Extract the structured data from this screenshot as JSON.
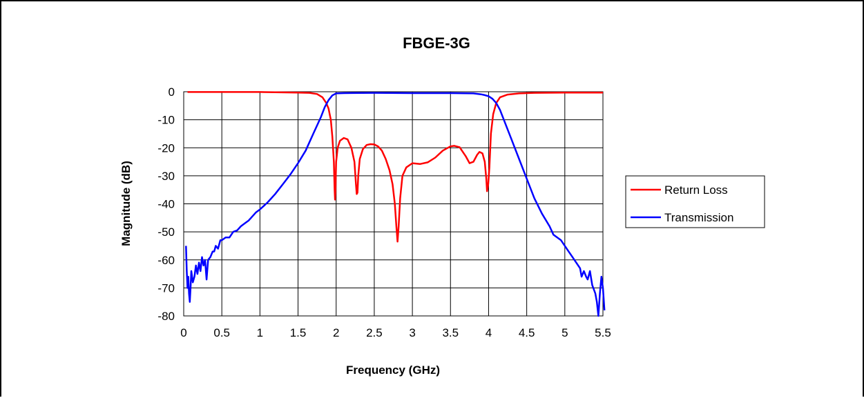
{
  "chart_data": {
    "type": "line",
    "title": "FBGE-3G",
    "xlabel": "Frequency (GHz)",
    "ylabel": "Magnitude (dB)",
    "xlim": [
      0,
      5.5
    ],
    "ylim": [
      -80,
      0
    ],
    "x_ticks": [
      "0",
      "0.5",
      "1",
      "1.5",
      "2",
      "2.5",
      "3",
      "3.5",
      "4",
      "4.5",
      "5",
      "5.5"
    ],
    "y_ticks": [
      "0",
      "-10",
      "-20",
      "-30",
      "-40",
      "-50",
      "-60",
      "-70",
      "-80"
    ],
    "grid": true,
    "legend_position": "right",
    "series": [
      {
        "name": "Return Loss",
        "color": "#ff0000",
        "points": [
          [
            0.05,
            -0.1
          ],
          [
            0.5,
            -0.1
          ],
          [
            1.0,
            -0.1
          ],
          [
            1.2,
            -0.2
          ],
          [
            1.5,
            -0.3
          ],
          [
            1.65,
            -0.4
          ],
          [
            1.75,
            -0.8
          ],
          [
            1.82,
            -2
          ],
          [
            1.87,
            -4
          ],
          [
            1.9,
            -6
          ],
          [
            1.93,
            -10
          ],
          [
            1.95,
            -16
          ],
          [
            1.97,
            -25
          ],
          [
            1.98,
            -35
          ],
          [
            1.985,
            -38.5
          ],
          [
            1.99,
            -36
          ],
          [
            2.0,
            -25
          ],
          [
            2.02,
            -20
          ],
          [
            2.05,
            -17.5
          ],
          [
            2.1,
            -16.5
          ],
          [
            2.15,
            -17
          ],
          [
            2.2,
            -20
          ],
          [
            2.24,
            -25
          ],
          [
            2.26,
            -33
          ],
          [
            2.27,
            -36.5
          ],
          [
            2.28,
            -36
          ],
          [
            2.29,
            -30
          ],
          [
            2.31,
            -24
          ],
          [
            2.35,
            -20.5
          ],
          [
            2.4,
            -19
          ],
          [
            2.45,
            -18.7
          ],
          [
            2.5,
            -18.8
          ],
          [
            2.55,
            -19.5
          ],
          [
            2.6,
            -21
          ],
          [
            2.65,
            -24
          ],
          [
            2.7,
            -28
          ],
          [
            2.74,
            -33
          ],
          [
            2.77,
            -40
          ],
          [
            2.79,
            -48
          ],
          [
            2.805,
            -53.5
          ],
          [
            2.82,
            -48
          ],
          [
            2.84,
            -38
          ],
          [
            2.87,
            -30
          ],
          [
            2.92,
            -27
          ],
          [
            3.0,
            -25.5
          ],
          [
            3.1,
            -25.8
          ],
          [
            3.2,
            -25.2
          ],
          [
            3.3,
            -23.5
          ],
          [
            3.4,
            -21
          ],
          [
            3.5,
            -19.5
          ],
          [
            3.55,
            -19.3
          ],
          [
            3.62,
            -19.8
          ],
          [
            3.7,
            -23
          ],
          [
            3.75,
            -25.5
          ],
          [
            3.8,
            -25
          ],
          [
            3.85,
            -22.5
          ],
          [
            3.88,
            -21.5
          ],
          [
            3.92,
            -22
          ],
          [
            3.95,
            -25
          ],
          [
            3.97,
            -31
          ],
          [
            3.98,
            -35.5
          ],
          [
            3.995,
            -33
          ],
          [
            4.01,
            -27
          ],
          [
            4.03,
            -15
          ],
          [
            4.06,
            -8
          ],
          [
            4.1,
            -4
          ],
          [
            4.15,
            -2
          ],
          [
            4.25,
            -1
          ],
          [
            4.4,
            -0.6
          ],
          [
            4.6,
            -0.4
          ],
          [
            5.0,
            -0.3
          ],
          [
            5.5,
            -0.3
          ]
        ]
      },
      {
        "name": "Transmission",
        "color": "#0000ff",
        "points": [
          [
            0.03,
            -55
          ],
          [
            0.04,
            -64
          ],
          [
            0.05,
            -70
          ],
          [
            0.06,
            -66
          ],
          [
            0.07,
            -72
          ],
          [
            0.08,
            -75
          ],
          [
            0.09,
            -70
          ],
          [
            0.1,
            -64
          ],
          [
            0.12,
            -68
          ],
          [
            0.14,
            -66
          ],
          [
            0.16,
            -62
          ],
          [
            0.18,
            -65
          ],
          [
            0.2,
            -61
          ],
          [
            0.22,
            -64
          ],
          [
            0.24,
            -59
          ],
          [
            0.26,
            -62
          ],
          [
            0.28,
            -60
          ],
          [
            0.3,
            -67
          ],
          [
            0.32,
            -60
          ],
          [
            0.35,
            -59
          ],
          [
            0.38,
            -57
          ],
          [
            0.4,
            -57
          ],
          [
            0.42,
            -55
          ],
          [
            0.45,
            -56
          ],
          [
            0.48,
            -53
          ],
          [
            0.5,
            -53
          ],
          [
            0.55,
            -52
          ],
          [
            0.6,
            -52
          ],
          [
            0.65,
            -50
          ],
          [
            0.7,
            -49.5
          ],
          [
            0.75,
            -48
          ],
          [
            0.8,
            -47
          ],
          [
            0.85,
            -46
          ],
          [
            0.9,
            -44.5
          ],
          [
            0.95,
            -43
          ],
          [
            1.0,
            -42
          ],
          [
            1.1,
            -39.5
          ],
          [
            1.2,
            -36.5
          ],
          [
            1.3,
            -33
          ],
          [
            1.4,
            -29.5
          ],
          [
            1.5,
            -25.5
          ],
          [
            1.6,
            -21
          ],
          [
            1.7,
            -15
          ],
          [
            1.8,
            -9
          ],
          [
            1.85,
            -5.5
          ],
          [
            1.9,
            -3
          ],
          [
            1.95,
            -1.3
          ],
          [
            2.0,
            -0.6
          ],
          [
            2.1,
            -0.5
          ],
          [
            2.5,
            -0.4
          ],
          [
            3.0,
            -0.5
          ],
          [
            3.5,
            -0.5
          ],
          [
            3.8,
            -0.6
          ],
          [
            3.9,
            -0.9
          ],
          [
            3.95,
            -1.2
          ],
          [
            4.0,
            -1.6
          ],
          [
            4.05,
            -2.5
          ],
          [
            4.1,
            -4
          ],
          [
            4.15,
            -6.5
          ],
          [
            4.2,
            -10
          ],
          [
            4.3,
            -17
          ],
          [
            4.4,
            -24
          ],
          [
            4.5,
            -31
          ],
          [
            4.6,
            -38
          ],
          [
            4.7,
            -43.5
          ],
          [
            4.8,
            -48
          ],
          [
            4.85,
            -51
          ],
          [
            4.9,
            -52
          ],
          [
            4.95,
            -53
          ],
          [
            5.0,
            -55
          ],
          [
            5.05,
            -57
          ],
          [
            5.1,
            -59
          ],
          [
            5.15,
            -61
          ],
          [
            5.2,
            -63
          ],
          [
            5.22,
            -66
          ],
          [
            5.25,
            -64
          ],
          [
            5.28,
            -66
          ],
          [
            5.3,
            -67
          ],
          [
            5.33,
            -64
          ],
          [
            5.36,
            -69
          ],
          [
            5.4,
            -72
          ],
          [
            5.42,
            -75
          ],
          [
            5.44,
            -80
          ],
          [
            5.46,
            -72
          ],
          [
            5.48,
            -66
          ],
          [
            5.5,
            -70
          ],
          [
            5.52,
            -78
          ]
        ]
      }
    ]
  }
}
